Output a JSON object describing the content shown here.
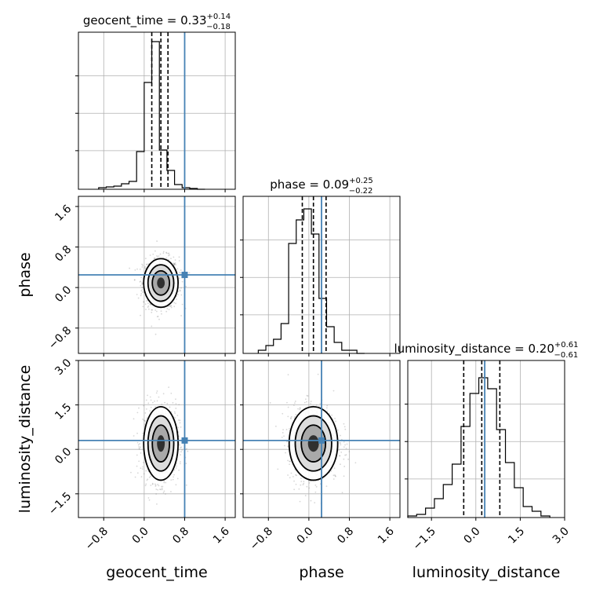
{
  "chart_data": {
    "type": "corner",
    "parameters": [
      "geocent_time",
      "phase",
      "luminosity_distance"
    ],
    "axis_labels": {
      "x": [
        "geocent_time",
        "phase",
        "luminosity_distance"
      ],
      "y": [
        "phase",
        "luminosity_distance"
      ]
    },
    "ranges": {
      "geocent_time": [
        -1.3,
        1.8
      ],
      "phase": [
        -1.3,
        1.8
      ],
      "luminosity_distance": [
        -2.3,
        3.0
      ]
    },
    "truths": {
      "geocent_time": 0.8,
      "phase": 0.25,
      "luminosity_distance": 0.3
    },
    "colors": {
      "truth": "#4682b4",
      "hist": "#000000",
      "grid": "#b0b0b0",
      "points": "#8c8c8c"
    },
    "titles": [
      {
        "param": "geocent_time",
        "label": "geocent_time = ",
        "median": "0.33",
        "plus": "+0.14",
        "minus": "−0.18"
      },
      {
        "param": "phase",
        "label": "phase = ",
        "median": "0.09",
        "plus": "+0.25",
        "minus": "−0.22"
      },
      {
        "param": "luminosity_distance",
        "label": "luminosity_distance = ",
        "median": "0.20",
        "plus": "+0.61",
        "minus": "−0.61"
      }
    ],
    "ticks": {
      "geocent_time": {
        "values": [
          -0.8,
          0.0,
          0.8,
          1.6
        ],
        "labels": [
          "−0.8",
          "0.0",
          "0.8",
          "1.6"
        ]
      },
      "phase": {
        "values": [
          -0.8,
          0.0,
          0.8,
          1.6
        ],
        "labels": [
          "−0.8",
          "0.0",
          "0.8",
          "1.6"
        ]
      },
      "luminosity_distance": {
        "values": [
          -1.5,
          0.0,
          1.5,
          3.0
        ],
        "labels": [
          "−1.5",
          "0.0",
          "1.5",
          "3.0"
        ]
      }
    },
    "histograms": [
      {
        "param": "geocent_time",
        "edges": [
          -0.9,
          -0.75,
          -0.6,
          -0.45,
          -0.3,
          -0.15,
          0.0,
          0.15,
          0.3,
          0.45,
          0.6,
          0.75,
          0.9,
          1.05,
          1.2
        ],
        "counts": [
          0.01,
          0.015,
          0.02,
          0.035,
          0.05,
          0.24,
          0.68,
          0.94,
          0.25,
          0.12,
          0.03,
          0.01,
          0.005,
          0.0
        ],
        "quantiles": [
          0.15,
          0.33,
          0.47
        ]
      },
      {
        "param": "phase",
        "edges": [
          -1.0,
          -0.85,
          -0.7,
          -0.55,
          -0.4,
          -0.25,
          -0.1,
          0.05,
          0.2,
          0.35,
          0.5,
          0.65,
          0.8,
          0.95,
          1.1
        ],
        "counts": [
          0.02,
          0.05,
          0.09,
          0.19,
          0.7,
          0.85,
          0.92,
          0.76,
          0.35,
          0.17,
          0.07,
          0.02,
          0.02,
          0.0
        ],
        "quantiles": [
          -0.13,
          0.09,
          0.34
        ]
      },
      {
        "param": "luminosity_distance",
        "edges": [
          -2.3,
          -2.0,
          -1.7,
          -1.4,
          -1.1,
          -0.8,
          -0.5,
          -0.2,
          0.1,
          0.4,
          0.7,
          1.0,
          1.3,
          1.6,
          1.9,
          2.2,
          2.5
        ],
        "counts": [
          0.01,
          0.02,
          0.06,
          0.12,
          0.21,
          0.34,
          0.58,
          0.79,
          0.89,
          0.82,
          0.56,
          0.35,
          0.19,
          0.07,
          0.04,
          0.01
        ],
        "quantiles": [
          -0.41,
          0.2,
          0.81
        ]
      }
    ],
    "joint": [
      {
        "x": "geocent_time",
        "y": "phase",
        "center": [
          0.33,
          0.09
        ],
        "sigma": [
          0.17,
          0.24
        ]
      },
      {
        "x": "geocent_time",
        "y": "luminosity_distance",
        "center": [
          0.33,
          0.2
        ],
        "sigma": [
          0.17,
          0.62
        ]
      },
      {
        "x": "phase",
        "y": "luminosity_distance",
        "center": [
          0.09,
          0.2
        ],
        "sigma": [
          0.24,
          0.62
        ]
      }
    ],
    "grid": true
  }
}
